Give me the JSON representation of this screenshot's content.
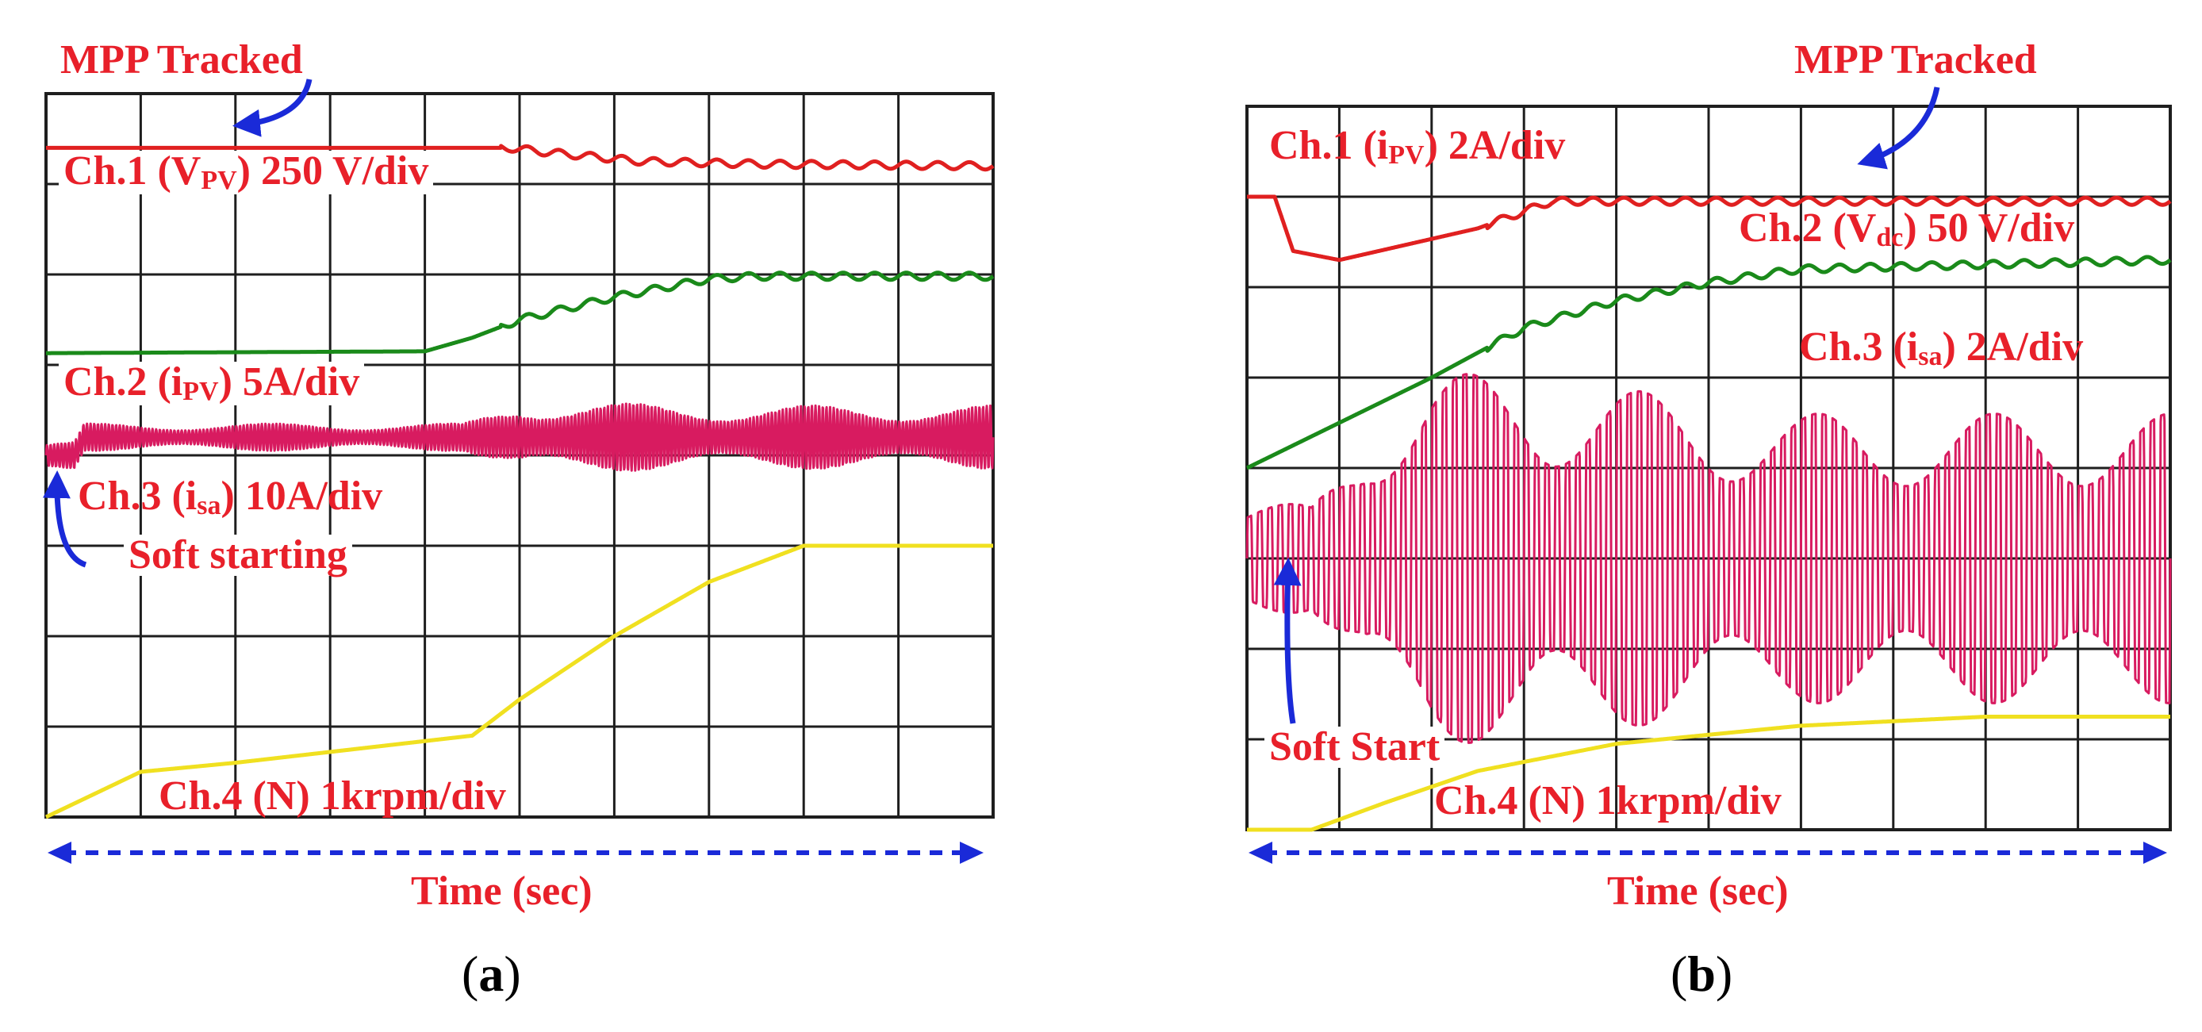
{
  "chart_data": [
    {
      "type": "line",
      "panel_caption": [
        "(",
        "a",
        ")"
      ],
      "grid": true,
      "divisions": {
        "x": 10,
        "y": 8
      },
      "xlabel": "Time (sec)",
      "annotations": {
        "top": "MPP Tracked",
        "bottom_left": "Soft starting"
      },
      "channels": [
        {
          "id": 1,
          "label": {
            "pre": "Ch.1 (V",
            "sub": "PV",
            "post": ") 250 V/div"
          },
          "color": "#e02020",
          "description_points": [
            [
              0,
              7.4
            ],
            [
              4.9,
              7.4
            ],
            [
              5.3,
              7.35
            ],
            [
              6.3,
              7.25
            ],
            [
              7.6,
              7.22
            ],
            [
              10,
              7.2
            ]
          ]
        },
        {
          "id": 2,
          "label": {
            "pre": "Ch.2 (i",
            "sub": "PV",
            "post": ") 5A/div"
          },
          "color": "#1a8a1a",
          "description_points": [
            [
              0,
              5.13
            ],
            [
              4.0,
              5.15
            ],
            [
              4.5,
              5.3
            ],
            [
              5.0,
              5.5
            ],
            [
              6.0,
              5.75
            ],
            [
              7.0,
              5.95
            ],
            [
              7.5,
              5.98
            ],
            [
              10,
              5.98
            ]
          ]
        },
        {
          "id": 3,
          "label": {
            "pre": "Ch.3 (i",
            "sub": "sa",
            "post": ") 10A/div"
          },
          "color": "#d81b60",
          "description_points": [
            [
              0,
              4.0
            ],
            [
              0.3,
              4.0
            ],
            [
              0.4,
              4.2
            ],
            [
              4.4,
              4.2
            ],
            [
              10,
              4.2
            ]
          ],
          "amplitude_points": [
            [
              0.4,
              0.15
            ],
            [
              4.4,
              0.15
            ],
            [
              5.0,
              0.4
            ],
            [
              7.0,
              0.35
            ],
            [
              10,
              0.35
            ]
          ]
        },
        {
          "id": 4,
          "label": {
            "pre": "Ch.4 (N) 1krpm/div",
            "sub": "",
            "post": ""
          },
          "color": "#f0e020",
          "description_points": [
            [
              0,
              0.0
            ],
            [
              1.0,
              0.5
            ],
            [
              2.0,
              0.6
            ],
            [
              4.5,
              0.9
            ],
            [
              5.0,
              1.3
            ],
            [
              6.0,
              2.0
            ],
            [
              7.0,
              2.6
            ],
            [
              8.0,
              3.0
            ],
            [
              8.5,
              3.0
            ],
            [
              10,
              3.0
            ]
          ]
        }
      ]
    },
    {
      "type": "line",
      "panel_caption": [
        "(",
        "b",
        ")"
      ],
      "grid": true,
      "divisions": {
        "x": 10,
        "y": 8
      },
      "xlabel": "Time (sec)",
      "annotations": {
        "top": "MPP Tracked",
        "bottom_left": "Soft Start"
      },
      "channels": [
        {
          "id": 1,
          "label": {
            "pre": "Ch.1 (i",
            "sub": "PV",
            "post": ") 2A/div"
          },
          "color": "#e02020",
          "description_points": [
            [
              0,
              7.0
            ],
            [
              0.3,
              7.0
            ],
            [
              0.5,
              6.4
            ],
            [
              1.0,
              6.3
            ],
            [
              2.5,
              6.65
            ],
            [
              3.3,
              6.95
            ],
            [
              10,
              6.95
            ]
          ]
        },
        {
          "id": 2,
          "label": {
            "pre": "Ch.2 (V",
            "sub": "dc",
            "post": ") 50 V/div"
          },
          "color": "#1a8a1a",
          "description_points": [
            [
              0,
              4.0
            ],
            [
              1.0,
              4.5
            ],
            [
              2.0,
              5.0
            ],
            [
              3.0,
              5.55
            ],
            [
              4.0,
              5.85
            ],
            [
              5.0,
              6.05
            ],
            [
              6.0,
              6.2
            ],
            [
              10,
              6.3
            ]
          ]
        },
        {
          "id": 3,
          "label": {
            "pre": "Ch.3 (i",
            "sub": "sa",
            "post": ") 2A/div"
          },
          "color": "#d81b60",
          "description_points": [
            [
              0,
              3.0
            ],
            [
              0.7,
              3.0
            ],
            [
              10,
              3.0
            ]
          ],
          "amplitude_points": [
            [
              0.7,
              0.6
            ],
            [
              1.3,
              1.6
            ],
            [
              2.0,
              2.0
            ],
            [
              3.0,
              2.1
            ],
            [
              4.5,
              1.8
            ],
            [
              6.0,
              1.6
            ],
            [
              10,
              1.6
            ]
          ]
        },
        {
          "id": 4,
          "label": {
            "pre": "Ch.4 (N) 1krpm/div",
            "sub": "",
            "post": ""
          },
          "color": "#f0e020",
          "description_points": [
            [
              0,
              0.0
            ],
            [
              0.7,
              0.0
            ],
            [
              1.5,
              0.3
            ],
            [
              2.5,
              0.65
            ],
            [
              4.0,
              0.95
            ],
            [
              6.0,
              1.15
            ],
            [
              8.0,
              1.25
            ],
            [
              10,
              1.25
            ]
          ]
        }
      ]
    }
  ]
}
